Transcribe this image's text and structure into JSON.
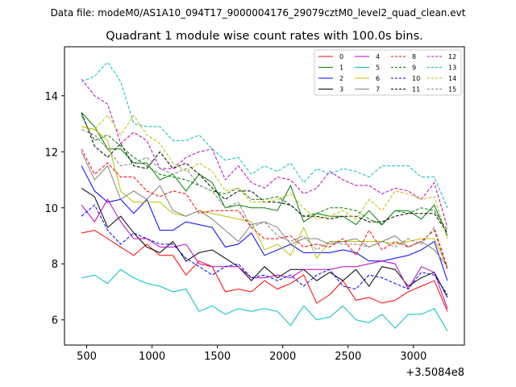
{
  "chart_data": {
    "type": "line",
    "suptitle": "Data file: modeM0/AS1A10_094T17_9000004176_29079cztM0_level2_quad_clean.evt",
    "title": "Quadrant 1 module wise count rates with 100.0s bins.",
    "xlabel": "",
    "ylabel": "",
    "x_offset_label": "+3.5084e8",
    "xlim": [
      330,
      3390
    ],
    "ylim": [
      5.1,
      15.75
    ],
    "xticks": [
      500,
      1000,
      1500,
      2000,
      2500,
      3000
    ],
    "yticks": [
      6,
      8,
      10,
      12,
      14
    ],
    "legend_position": "top-right",
    "x": [
      460,
      560,
      660,
      760,
      860,
      960,
      1060,
      1160,
      1260,
      1360,
      1460,
      1560,
      1660,
      1760,
      1860,
      1960,
      2060,
      2160,
      2260,
      2360,
      2460,
      2560,
      2660,
      2760,
      2860,
      2960,
      3060,
      3160,
      3260
    ],
    "series": [
      {
        "name": "0",
        "color": "#ff0000",
        "dashed": false,
        "values": [
          9.1,
          9.2,
          8.9,
          8.6,
          8.3,
          8.7,
          8.3,
          8.3,
          7.6,
          8.1,
          7.9,
          7.0,
          7.1,
          7.0,
          7.4,
          7.1,
          7.3,
          7.6,
          6.6,
          6.9,
          7.4,
          6.7,
          6.8,
          6.6,
          6.7,
          7.0,
          7.2,
          7.4,
          6.3
        ]
      },
      {
        "name": "1",
        "color": "#008000",
        "dashed": false,
        "values": [
          13.4,
          12.9,
          12.1,
          12.1,
          11.6,
          11.6,
          11.0,
          11.2,
          10.6,
          11.2,
          10.9,
          10.0,
          10.1,
          10.0,
          10.0,
          9.9,
          10.8,
          9.5,
          9.8,
          9.7,
          9.7,
          9.4,
          9.9,
          9.4,
          9.9,
          9.9,
          9.6,
          10.1,
          9.0
        ]
      },
      {
        "name": "2",
        "color": "#0000ff",
        "dashed": false,
        "values": [
          11.5,
          10.6,
          10.2,
          10.3,
          9.8,
          10.3,
          9.2,
          9.2,
          9.5,
          9.4,
          9.3,
          8.6,
          8.7,
          9.1,
          8.3,
          8.5,
          8.7,
          8.4,
          8.4,
          8.4,
          8.5,
          8.4,
          8.1,
          8.1,
          8.2,
          8.3,
          8.5,
          8.8,
          7.4
        ]
      },
      {
        "name": "3",
        "color": "#000000",
        "dashed": false,
        "values": [
          10.7,
          10.4,
          9.3,
          9.7,
          9.1,
          8.6,
          8.4,
          8.8,
          8.1,
          8.4,
          8.5,
          8.2,
          7.9,
          7.4,
          7.9,
          7.5,
          7.8,
          7.8,
          7.4,
          7.7,
          7.4,
          7.8,
          7.2,
          7.9,
          7.8,
          7.2,
          7.5,
          7.7,
          6.8
        ]
      },
      {
        "name": "4",
        "color": "#bf00bf",
        "dashed": false,
        "values": [
          10.1,
          9.5,
          10.3,
          9.5,
          8.9,
          8.9,
          8.6,
          8.6,
          8.7,
          8.0,
          7.9,
          7.9,
          7.9,
          7.5,
          7.5,
          7.6,
          7.5,
          7.8,
          7.8,
          7.8,
          7.9,
          7.9,
          8.0,
          8.1,
          8.0,
          7.1,
          7.9,
          7.7,
          6.4
        ]
      },
      {
        "name": "5",
        "color": "#00bfbf",
        "dashed": false,
        "values": [
          7.5,
          7.6,
          7.3,
          7.8,
          7.5,
          7.3,
          7.2,
          7.0,
          7.1,
          6.3,
          6.5,
          6.2,
          6.4,
          6.3,
          6.4,
          6.3,
          5.8,
          6.5,
          6.0,
          6.1,
          6.5,
          6.0,
          5.9,
          6.2,
          5.7,
          6.2,
          6.2,
          6.4,
          5.6
        ]
      },
      {
        "name": "6",
        "color": "#bfbf00",
        "dashed": false,
        "values": [
          12.9,
          12.8,
          12.4,
          10.6,
          10.2,
          10.2,
          10.2,
          9.8,
          9.7,
          9.9,
          9.8,
          9.7,
          9.6,
          9.5,
          8.5,
          8.7,
          8.3,
          9.3,
          8.2,
          8.8,
          8.8,
          8.8,
          8.8,
          8.8,
          8.7,
          8.8,
          8.9,
          8.9,
          7.9
        ]
      },
      {
        "name": "7",
        "color": "#808080",
        "dashed": false,
        "values": [
          12.0,
          11.0,
          11.5,
          10.3,
          10.6,
          10.3,
          10.8,
          9.9,
          9.7,
          9.9,
          9.6,
          9.2,
          8.8,
          9.4,
          9.5,
          9.3,
          8.7,
          8.9,
          8.9,
          8.7,
          8.8,
          8.9,
          8.6,
          8.8,
          9.0,
          8.6,
          8.8,
          8.5,
          7.9
        ]
      },
      {
        "name": "8",
        "color": "#ff0000",
        "dashed": true,
        "values": [
          12.1,
          11.2,
          11.6,
          11.1,
          11.1,
          10.6,
          10.4,
          10.6,
          10.5,
          9.8,
          9.9,
          9.9,
          9.9,
          9.3,
          8.9,
          8.9,
          9.0,
          8.6,
          8.7,
          8.6,
          8.9,
          8.3,
          9.2,
          8.5,
          8.8,
          8.6,
          8.8,
          9.2,
          7.8
        ]
      },
      {
        "name": "9",
        "color": "#008000",
        "dashed": true,
        "values": [
          13.3,
          12.4,
          12.6,
          12.2,
          11.8,
          11.5,
          11.2,
          11.1,
          11.0,
          10.8,
          10.6,
          10.5,
          10.7,
          10.3,
          10.3,
          10.4,
          10.1,
          9.7,
          9.8,
          10.0,
          10.0,
          9.9,
          9.6,
          9.4,
          9.9,
          9.8,
          10.0,
          9.9,
          9.2
        ]
      },
      {
        "name": "10",
        "color": "#0000ff",
        "dashed": true,
        "values": [
          9.7,
          10.1,
          9.2,
          8.7,
          9.1,
          8.9,
          8.7,
          8.7,
          8.2,
          7.9,
          7.6,
          7.9,
          8.0,
          7.5,
          7.6,
          7.4,
          7.6,
          7.2,
          7.6,
          7.8,
          7.2,
          7.1,
          7.6,
          7.5,
          7.3,
          7.1,
          7.7,
          7.6,
          6.9
        ]
      },
      {
        "name": "11",
        "color": "#000000",
        "dashed": true,
        "values": [
          13.4,
          12.2,
          11.8,
          12.3,
          11.5,
          11.4,
          12.0,
          11.4,
          11.6,
          11.2,
          10.7,
          10.3,
          10.6,
          10.6,
          10.2,
          10.2,
          10.1,
          9.7,
          9.7,
          9.6,
          9.7,
          9.7,
          9.5,
          9.5,
          9.7,
          9.8,
          9.8,
          9.8,
          9.1
        ]
      },
      {
        "name": "12",
        "color": "#bf00bf",
        "dashed": true,
        "values": [
          14.6,
          14.0,
          13.7,
          12.3,
          12.7,
          12.4,
          11.4,
          11.4,
          11.8,
          12.0,
          12.1,
          11.0,
          11.5,
          10.9,
          10.7,
          11.1,
          11.0,
          10.5,
          10.7,
          11.3,
          11.0,
          10.8,
          10.8,
          10.5,
          10.7,
          10.6,
          10.3,
          10.9,
          9.3
        ]
      },
      {
        "name": "13",
        "color": "#00bfbf",
        "dashed": true,
        "values": [
          14.5,
          14.7,
          15.2,
          14.5,
          13.0,
          12.9,
          12.9,
          12.4,
          12.4,
          12.6,
          12.1,
          11.7,
          11.8,
          11.2,
          11.5,
          11.3,
          11.6,
          10.9,
          11.4,
          11.2,
          11.4,
          11.3,
          11.1,
          11.5,
          11.5,
          11.5,
          11.1,
          11.1,
          10.0
        ]
      },
      {
        "name": "14",
        "color": "#bfbf00",
        "dashed": true,
        "values": [
          12.9,
          12.8,
          13.3,
          12.6,
          13.3,
          12.6,
          12.3,
          11.6,
          11.3,
          11.6,
          11.3,
          10.6,
          10.7,
          10.2,
          10.2,
          10.3,
          10.5,
          10.0,
          9.6,
          9.7,
          9.9,
          9.6,
          10.3,
          9.9,
          10.6,
          10.5,
          10.3,
          10.4,
          8.9
        ]
      },
      {
        "name": "15",
        "color": "#808080",
        "dashed": true,
        "values": [
          12.8,
          12.6,
          12.1,
          11.5,
          11.6,
          11.8,
          11.4,
          11.2,
          11.4,
          10.8,
          10.6,
          10.0,
          10.2,
          9.3,
          9.5,
          9.0,
          8.8,
          9.0,
          8.5,
          8.8,
          8.7,
          8.7,
          8.6,
          8.8,
          8.6,
          8.9,
          8.7,
          9.3,
          7.9
        ]
      }
    ]
  }
}
